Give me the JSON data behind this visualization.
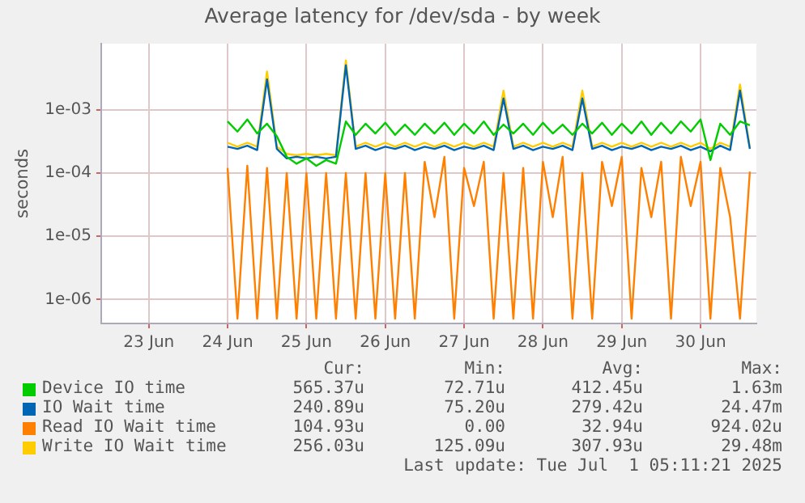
{
  "chart_data": {
    "type": "line",
    "title": "Average latency for /dev/sda - by week",
    "ylabel": "seconds",
    "x": [
      "2025-06-24T12:00",
      "2025-06-24T15:00",
      "2025-06-24T18:00",
      "2025-06-24T21:00",
      "2025-06-25T00:00",
      "2025-06-25T03:00",
      "2025-06-25T06:00",
      "2025-06-25T09:00",
      "2025-06-25T12:00",
      "2025-06-25T15:00",
      "2025-06-25T18:00",
      "2025-06-25T21:00",
      "2025-06-26T00:00",
      "2025-06-26T03:00",
      "2025-06-26T06:00",
      "2025-06-26T09:00",
      "2025-06-26T12:00",
      "2025-06-26T15:00",
      "2025-06-26T18:00",
      "2025-06-26T21:00",
      "2025-06-27T00:00",
      "2025-06-27T03:00",
      "2025-06-27T06:00",
      "2025-06-27T09:00",
      "2025-06-27T12:00",
      "2025-06-27T15:00",
      "2025-06-27T18:00",
      "2025-06-27T21:00",
      "2025-06-28T00:00",
      "2025-06-28T03:00",
      "2025-06-28T06:00",
      "2025-06-28T09:00",
      "2025-06-28T12:00",
      "2025-06-28T15:00",
      "2025-06-28T18:00",
      "2025-06-28T21:00",
      "2025-06-29T00:00",
      "2025-06-29T03:00",
      "2025-06-29T06:00",
      "2025-06-29T09:00",
      "2025-06-29T12:00",
      "2025-06-29T15:00",
      "2025-06-29T18:00",
      "2025-06-29T21:00",
      "2025-06-30T00:00",
      "2025-06-30T03:00",
      "2025-06-30T06:00",
      "2025-06-30T09:00",
      "2025-06-30T12:00",
      "2025-06-30T15:00",
      "2025-06-30T18:00",
      "2025-06-30T21:00",
      "2025-07-01T00:00",
      "2025-07-01T03:00"
    ],
    "series": [
      {
        "name": "Device IO time",
        "color": "#00cc00",
        "values": [
          0.00065,
          0.00045,
          0.0007,
          0.00042,
          0.0006,
          0.00038,
          0.00018,
          0.00014,
          0.00017,
          0.00013,
          0.00016,
          0.00014,
          0.00065,
          0.0004,
          0.0006,
          0.00042,
          0.00062,
          0.0004,
          0.00058,
          0.0004,
          0.0006,
          0.00042,
          0.00062,
          0.0004,
          0.0006,
          0.00042,
          0.00065,
          0.0004,
          0.00058,
          0.00042,
          0.0006,
          0.0004,
          0.00062,
          0.00042,
          0.00058,
          0.0004,
          0.0006,
          0.00042,
          0.00062,
          0.0004,
          0.0006,
          0.00042,
          0.00065,
          0.0004,
          0.00062,
          0.00042,
          0.00065,
          0.00045,
          0.0007,
          0.00016,
          0.0006,
          0.0004,
          0.00065,
          0.000565
        ]
      },
      {
        "name": "IO Wait time",
        "color": "#0066b3",
        "values": [
          0.00026,
          0.00024,
          0.00027,
          0.00023,
          0.003,
          0.00024,
          0.00017,
          0.00018,
          0.00017,
          0.00018,
          0.00017,
          0.00018,
          0.005,
          0.00024,
          0.00027,
          0.00023,
          0.00026,
          0.00024,
          0.00027,
          0.00023,
          0.00026,
          0.00024,
          0.00027,
          0.00023,
          0.00026,
          0.00024,
          0.00027,
          0.00023,
          0.0015,
          0.00024,
          0.00027,
          0.00023,
          0.00026,
          0.00024,
          0.00027,
          0.00023,
          0.0015,
          0.00024,
          0.00027,
          0.00023,
          0.00026,
          0.00024,
          0.00027,
          0.00023,
          0.00026,
          0.00024,
          0.00027,
          0.00023,
          0.00026,
          0.00022,
          0.00027,
          0.00023,
          0.002,
          0.00024
        ]
      },
      {
        "name": "Read IO Wait time",
        "color": "#ff8000",
        "values": [
          0.00012,
          5e-07,
          0.00013,
          5e-07,
          0.00012,
          5e-07,
          0.0001,
          5e-07,
          0.0001,
          5e-07,
          0.0001,
          5e-07,
          0.0001,
          5e-07,
          0.0001,
          5e-07,
          0.0001,
          5e-07,
          0.0001,
          5e-07,
          0.00015,
          2e-05,
          0.00018,
          5e-07,
          0.00012,
          3e-05,
          0.00015,
          5e-07,
          0.0001,
          5e-07,
          0.00012,
          5e-07,
          0.00015,
          2e-05,
          0.00018,
          5e-07,
          0.0001,
          5e-07,
          0.00015,
          3e-05,
          0.00018,
          5e-07,
          0.00012,
          2e-05,
          0.00015,
          5e-07,
          0.00018,
          3e-05,
          0.00015,
          5e-07,
          0.00012,
          2e-05,
          5e-07,
          0.000105
        ]
      },
      {
        "name": "Write IO Wait time",
        "color": "#ffcc00",
        "values": [
          0.0003,
          0.00026,
          0.0003,
          0.00026,
          0.004,
          0.00026,
          0.0002,
          0.00019,
          0.0002,
          0.00019,
          0.0002,
          0.00019,
          0.006,
          0.00026,
          0.0003,
          0.00026,
          0.0003,
          0.00026,
          0.0003,
          0.00026,
          0.0003,
          0.00026,
          0.0003,
          0.00026,
          0.0003,
          0.00026,
          0.0003,
          0.00026,
          0.002,
          0.00026,
          0.0003,
          0.00026,
          0.0003,
          0.00026,
          0.0003,
          0.00026,
          0.002,
          0.00026,
          0.0003,
          0.00026,
          0.0003,
          0.00026,
          0.0003,
          0.00026,
          0.0003,
          0.00026,
          0.0003,
          0.00026,
          0.0003,
          0.00024,
          0.0003,
          0.00026,
          0.0025,
          0.000256
        ]
      }
    ],
    "xlim": [
      "2025-06-22T21:30",
      "2025-07-01T05:00"
    ],
    "xticks": [
      {
        "value": "2025-06-23T12:00",
        "label": "23 Jun"
      },
      {
        "value": "2025-06-24T12:00",
        "label": "24 Jun"
      },
      {
        "value": "2025-06-25T12:00",
        "label": "25 Jun"
      },
      {
        "value": "2025-06-26T12:00",
        "label": "26 Jun"
      },
      {
        "value": "2025-06-27T12:00",
        "label": "27 Jun"
      },
      {
        "value": "2025-06-28T12:00",
        "label": "28 Jun"
      },
      {
        "value": "2025-06-29T12:00",
        "label": "29 Jun"
      },
      {
        "value": "2025-06-30T12:00",
        "label": "30 Jun"
      }
    ],
    "ylim": [
      4.2e-07,
      0.011
    ],
    "yticks": [
      {
        "value": 1e-06,
        "label": "1e-06"
      },
      {
        "value": 1e-05,
        "label": "1e-05"
      },
      {
        "value": 0.0001,
        "label": "1e-04"
      },
      {
        "value": 0.001,
        "label": "1e-03"
      }
    ],
    "log": "y",
    "grid": true,
    "legend": "bottom",
    "marker": "none",
    "line_style": "solid",
    "annotations": [
      "Cur:",
      "Min:",
      "Avg:",
      "Max:",
      "565.37u",
      "72.71u",
      "412.45u",
      "1.63m",
      "240.89u",
      "75.20u",
      "279.42u",
      "24.47m",
      "104.93u",
      "0.00",
      "32.94u",
      "924.02u",
      "256.03u",
      "125.09u",
      "307.93u",
      "29.48m",
      "Last update: Tue Jul  1 05:11:21 2025"
    ]
  }
}
